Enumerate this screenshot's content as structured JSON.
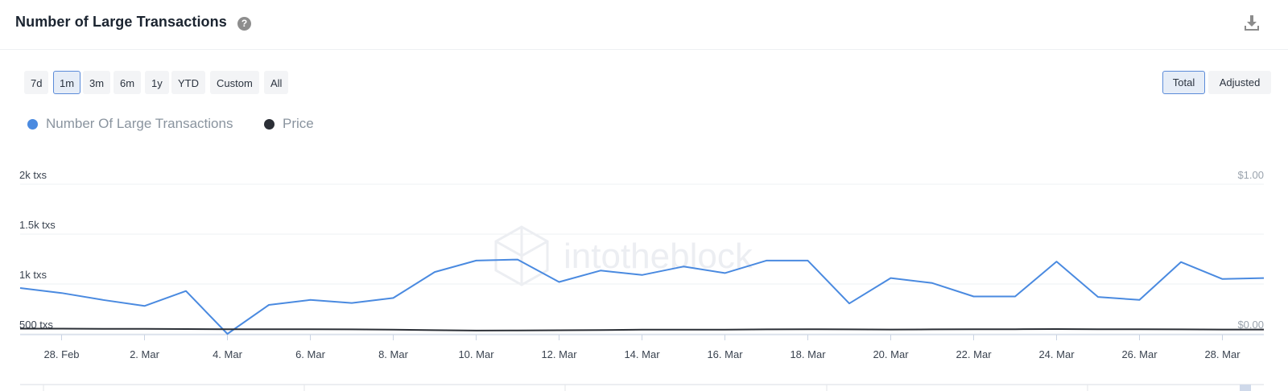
{
  "header": {
    "title": "Number of Large Transactions",
    "help_icon": "question-circle-icon",
    "download_icon": "download-icon"
  },
  "range_buttons": [
    "7d",
    "1m",
    "3m",
    "6m",
    "1y",
    "YTD",
    "Custom",
    "All"
  ],
  "range_selected": "1m",
  "mode_buttons": [
    "Total",
    "Adjusted"
  ],
  "mode_selected": "Total",
  "watermark": "intotheblock",
  "colors": {
    "transactions": "#4a8ae0",
    "price": "#2b2f36",
    "active_border": "#5b8bd9"
  },
  "chart_data": {
    "type": "line",
    "legend": [
      "Number Of Large Transactions",
      "Price"
    ],
    "x": [
      "27. Feb",
      "28. Feb",
      "1. Mar",
      "2. Mar",
      "3. Mar",
      "4. Mar",
      "5. Mar",
      "6. Mar",
      "7. Mar",
      "8. Mar",
      "9. Mar",
      "10. Mar",
      "11. Mar",
      "12. Mar",
      "13. Mar",
      "14. Mar",
      "15. Mar",
      "16. Mar",
      "17. Mar",
      "18. Mar",
      "19. Mar",
      "20. Mar",
      "21. Mar",
      "22. Mar",
      "23. Mar",
      "24. Mar",
      "25. Mar",
      "26. Mar",
      "27. Mar",
      "28. Mar",
      "29. Mar"
    ],
    "x_tick_labels": [
      "28. Feb",
      "2. Mar",
      "4. Mar",
      "6. Mar",
      "8. Mar",
      "10. Mar",
      "12. Mar",
      "14. Mar",
      "16. Mar",
      "18. Mar",
      "20. Mar",
      "22. Mar",
      "24. Mar",
      "26. Mar",
      "28. Mar"
    ],
    "series": [
      {
        "name": "Number Of Large Transactions",
        "axis": "left",
        "values": [
          960,
          910,
          840,
          780,
          930,
          500,
          790,
          840,
          810,
          860,
          1120,
          1235,
          1245,
          1020,
          1135,
          1090,
          1175,
          1110,
          1235,
          1235,
          805,
          1060,
          1010,
          875,
          875,
          1225,
          870,
          840,
          1220,
          1050,
          1060
        ]
      },
      {
        "name": "Price",
        "axis": "right",
        "values": [
          0.035,
          0.035,
          0.034,
          0.034,
          0.032,
          0.031,
          0.031,
          0.031,
          0.03,
          0.028,
          0.025,
          0.022,
          0.023,
          0.024,
          0.026,
          0.028,
          0.028,
          0.028,
          0.03,
          0.031,
          0.03,
          0.029,
          0.03,
          0.031,
          0.031,
          0.032,
          0.031,
          0.031,
          0.03,
          0.029,
          0.029
        ]
      }
    ],
    "y_left": {
      "ticks": [
        500,
        1000,
        1500,
        2000
      ],
      "tick_labels": [
        "500 txs",
        "1k txs",
        "1.5k txs",
        "2k txs"
      ],
      "range": [
        500,
        2000
      ]
    },
    "y_right": {
      "ticks": [
        0,
        1
      ],
      "tick_labels": [
        "$0.00",
        "$1.00"
      ],
      "range": [
        0,
        1
      ]
    },
    "grid": true,
    "legend_position": "top-left"
  }
}
